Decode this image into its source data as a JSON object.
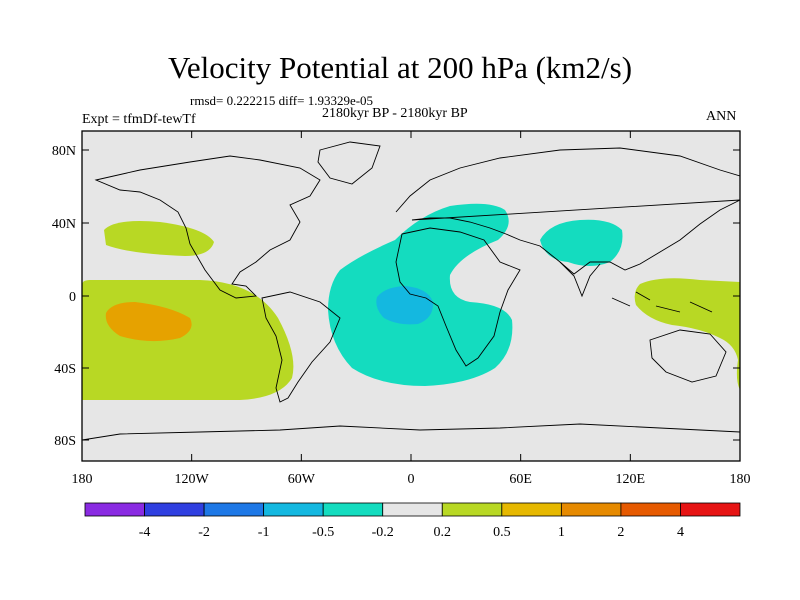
{
  "title": "Velocity Potential at 200 hPa (km2/s)",
  "stats": "rmsd= 0.222215  diff= 1.93329e-05",
  "subtitle": "2180kyr BP - 2180kyr BP",
  "experiment": "Expt = tfmDf-tewTf",
  "season": "ANN",
  "map": {
    "lat_ticks": [
      "80N",
      "40N",
      "0",
      "40S",
      "80S"
    ],
    "lon_ticks": [
      "180",
      "120W",
      "60W",
      "0",
      "60E",
      "120E",
      "180"
    ]
  },
  "colorbar": {
    "colors": [
      "#8a2be2",
      "#2f3fe0",
      "#1e78e6",
      "#14b8e0",
      "#14dcbf",
      "#e6e6e6",
      "#b8d824",
      "#e6b800",
      "#e68a00",
      "#e65a00",
      "#e61414"
    ],
    "labels": [
      "-4",
      "-2",
      "-1",
      "-0.5",
      "-0.2",
      "0.2",
      "0.5",
      "1",
      "2",
      "4"
    ]
  },
  "colors": {
    "background": "#e6e6e6",
    "positive_low": "#b8d824",
    "positive_mid": "#e6a200",
    "negative_low": "#14dcbf",
    "negative_mid": "#14b8e0"
  }
}
